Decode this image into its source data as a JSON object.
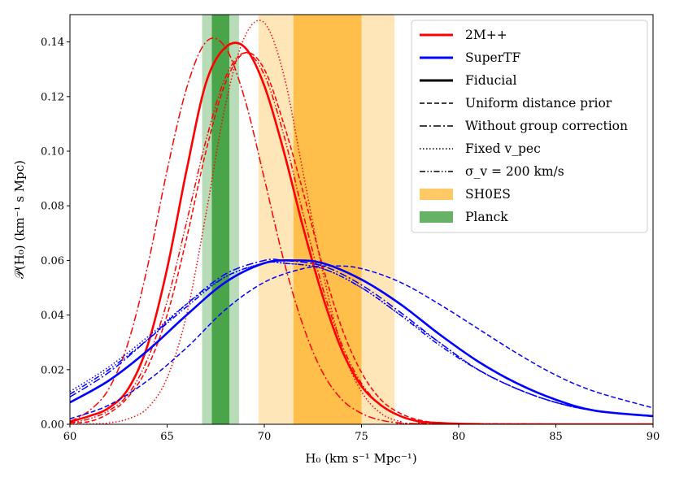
{
  "chart_data": {
    "type": "line",
    "title": "",
    "xlabel": "H₀ (km s⁻¹ Mpc⁻¹)",
    "ylabel": "𝒫(H₀) (km⁻¹ s Mpc)",
    "xlim": [
      60,
      90
    ],
    "ylim": [
      0,
      0.15
    ],
    "grid": false,
    "legend_position": "top-right",
    "xticks": [
      "60",
      "65",
      "70",
      "75",
      "80",
      "85",
      "90"
    ],
    "yticks": [
      "0.00",
      "0.02",
      "0.04",
      "0.06",
      "0.08",
      "0.10",
      "0.12",
      "0.14"
    ],
    "colors": {
      "red": "#ff0000",
      "blue": "#0000ff",
      "sh0es": "#ffa500",
      "planck": "#008000",
      "black": "#000000"
    },
    "bands": [
      {
        "name": "SH0ES",
        "inner": [
          71.5,
          75.0
        ],
        "outer": [
          69.7,
          76.7
        ],
        "color": "#ffa500"
      },
      {
        "name": "Planck",
        "inner": [
          67.3,
          68.2
        ],
        "outer": [
          66.8,
          68.7
        ],
        "color": "#008000"
      }
    ],
    "series": [
      {
        "name": "2M++ Fiducial",
        "sample": "2M++",
        "variant": "Fiducial",
        "color": "#ff0000",
        "style": "solid",
        "width": 2.6,
        "x": [
          60,
          61,
          62,
          63,
          64,
          65,
          66,
          67,
          68,
          69,
          70,
          71,
          72,
          73,
          74,
          75,
          76,
          77,
          78,
          79,
          80,
          81,
          82,
          90
        ],
        "y": [
          0.001,
          0.003,
          0.006,
          0.013,
          0.029,
          0.057,
          0.093,
          0.125,
          0.138,
          0.138,
          0.124,
          0.1,
          0.072,
          0.047,
          0.027,
          0.014,
          0.007,
          0.003,
          0.001,
          0.0005,
          0.0002,
          0.0001,
          0.0,
          0.0
        ]
      },
      {
        "name": "2M++ Uniform distance prior",
        "sample": "2M++",
        "variant": "Uniform distance prior",
        "color": "#ff0000",
        "style": "dashed",
        "width": 1.5,
        "x": [
          60,
          61,
          62,
          63,
          64,
          65,
          66,
          67,
          68,
          69,
          70,
          71,
          72,
          73,
          74,
          75,
          76,
          77,
          78,
          79,
          80,
          90
        ],
        "y": [
          0.0005,
          0.001,
          0.004,
          0.01,
          0.021,
          0.04,
          0.068,
          0.1,
          0.125,
          0.136,
          0.13,
          0.11,
          0.085,
          0.058,
          0.035,
          0.019,
          0.009,
          0.004,
          0.0015,
          0.0005,
          0.0002,
          0.0
        ]
      },
      {
        "name": "2M++ Without group correction",
        "sample": "2M++",
        "variant": "Without group correction",
        "color": "#ff0000",
        "style": "dashdot",
        "width": 1.5,
        "x": [
          60,
          61,
          62,
          63,
          64,
          65,
          66,
          67,
          68,
          69,
          70,
          71,
          72,
          73,
          74,
          75,
          76,
          77,
          78,
          79,
          90
        ],
        "y": [
          0.001,
          0.005,
          0.013,
          0.03,
          0.058,
          0.093,
          0.123,
          0.14,
          0.138,
          0.119,
          0.09,
          0.06,
          0.036,
          0.019,
          0.009,
          0.004,
          0.0015,
          0.0005,
          0.0002,
          0.0,
          0.0
        ]
      },
      {
        "name": "2M++ Fixed v_pec",
        "sample": "2M++",
        "variant": "Fixed v_pec",
        "color": "#ff0000",
        "style": "dotted",
        "width": 1.5,
        "x": [
          60,
          61,
          62,
          63,
          64,
          65,
          66,
          67,
          68,
          69,
          70,
          71,
          72,
          73,
          74,
          75,
          76,
          77,
          78,
          90
        ],
        "y": [
          0.0,
          0.0001,
          0.0005,
          0.002,
          0.006,
          0.017,
          0.04,
          0.077,
          0.117,
          0.142,
          0.147,
          0.128,
          0.092,
          0.056,
          0.028,
          0.012,
          0.004,
          0.001,
          0.0002,
          0.0
        ]
      },
      {
        "name": "2M++ σ_v = 200 km/s",
        "sample": "2M++",
        "variant": "σ_v = 200 km/s",
        "color": "#ff0000",
        "style": "dashdotdot",
        "width": 1.5,
        "x": [
          60,
          61,
          62,
          63,
          64,
          65,
          66,
          67,
          68,
          69,
          70,
          71,
          72,
          73,
          74,
          75,
          76,
          77,
          78,
          79,
          90
        ],
        "y": [
          0.0005,
          0.002,
          0.005,
          0.011,
          0.024,
          0.045,
          0.074,
          0.104,
          0.127,
          0.136,
          0.128,
          0.106,
          0.077,
          0.05,
          0.029,
          0.015,
          0.007,
          0.003,
          0.001,
          0.0003,
          0.0
        ]
      },
      {
        "name": "SuperTF Fiducial",
        "sample": "SuperTF",
        "variant": "Fiducial",
        "color": "#0000ff",
        "style": "solid",
        "width": 2.6,
        "x": [
          60,
          62,
          64,
          66,
          68,
          70,
          71.5,
          73,
          75,
          77,
          79,
          81,
          83,
          85,
          87,
          90
        ],
        "y": [
          0.008,
          0.016,
          0.027,
          0.04,
          0.052,
          0.059,
          0.06,
          0.059,
          0.053,
          0.044,
          0.033,
          0.023,
          0.015,
          0.009,
          0.005,
          0.003
        ]
      },
      {
        "name": "SuperTF Uniform distance prior",
        "sample": "SuperTF",
        "variant": "Uniform distance prior",
        "color": "#0000ff",
        "style": "dashed",
        "width": 1.5,
        "x": [
          60,
          62,
          64,
          66,
          68,
          70,
          72,
          73.5,
          75,
          77,
          79,
          81,
          83,
          85,
          87,
          90
        ],
        "y": [
          0.002,
          0.007,
          0.016,
          0.028,
          0.042,
          0.052,
          0.057,
          0.058,
          0.057,
          0.052,
          0.044,
          0.035,
          0.026,
          0.018,
          0.012,
          0.006
        ]
      },
      {
        "name": "SuperTF Without group correction",
        "sample": "SuperTF",
        "variant": "Without group correction",
        "color": "#0000ff",
        "style": "dashdot",
        "width": 1.5,
        "x": [
          60,
          62,
          64,
          66,
          68,
          70,
          71,
          73,
          75,
          77,
          79,
          81,
          83,
          85,
          87,
          90
        ],
        "y": [
          0.01,
          0.019,
          0.031,
          0.044,
          0.055,
          0.06,
          0.06,
          0.058,
          0.051,
          0.041,
          0.03,
          0.02,
          0.013,
          0.008,
          0.005,
          0.003
        ]
      },
      {
        "name": "SuperTF Fixed v_pec",
        "sample": "SuperTF",
        "variant": "Fixed v_pec",
        "color": "#0000ff",
        "style": "dotted",
        "width": 1.5,
        "x": [
          60,
          62,
          64,
          66,
          68,
          70,
          71,
          73,
          75,
          77,
          79,
          81,
          83,
          85,
          87,
          90
        ],
        "y": [
          0.012,
          0.021,
          0.032,
          0.044,
          0.054,
          0.059,
          0.059,
          0.057,
          0.05,
          0.04,
          0.03,
          0.02,
          0.013,
          0.008,
          0.005,
          0.003
        ]
      },
      {
        "name": "SuperTF σ_v = 200 km/s",
        "sample": "SuperTF",
        "variant": "σ_v = 200 km/s",
        "color": "#0000ff",
        "style": "dashdotdot",
        "width": 1.5,
        "x": [
          60,
          62,
          64,
          66,
          68,
          70,
          71,
          73,
          75,
          77,
          79,
          81,
          83,
          85,
          87,
          90
        ],
        "y": [
          0.011,
          0.02,
          0.031,
          0.043,
          0.054,
          0.059,
          0.059,
          0.057,
          0.05,
          0.04,
          0.029,
          0.02,
          0.013,
          0.008,
          0.005,
          0.003
        ]
      }
    ],
    "legend": [
      {
        "label": "2M++",
        "kind": "line",
        "color": "#ff0000",
        "style": "solid",
        "width": 3
      },
      {
        "label": "SuperTF",
        "kind": "line",
        "color": "#0000ff",
        "style": "solid",
        "width": 3
      },
      {
        "label": "Fiducial",
        "kind": "line",
        "color": "#000000",
        "style": "solid",
        "width": 3
      },
      {
        "label": "Uniform distance prior",
        "kind": "line",
        "color": "#000000",
        "style": "dashed",
        "width": 1.5
      },
      {
        "label": "Without group correction",
        "kind": "line",
        "color": "#000000",
        "style": "dashdot",
        "width": 1.5
      },
      {
        "label": "Fixed v_pec",
        "kind": "line",
        "color": "#000000",
        "style": "dotted",
        "width": 1.5
      },
      {
        "label": "σ_v = 200 km/s",
        "kind": "line",
        "color": "#000000",
        "style": "dashdotdot",
        "width": 1.5
      },
      {
        "label": "SH0ES",
        "kind": "patch",
        "color": "#ffa500"
      },
      {
        "label": "Planck",
        "kind": "patch",
        "color": "#008000"
      }
    ]
  }
}
